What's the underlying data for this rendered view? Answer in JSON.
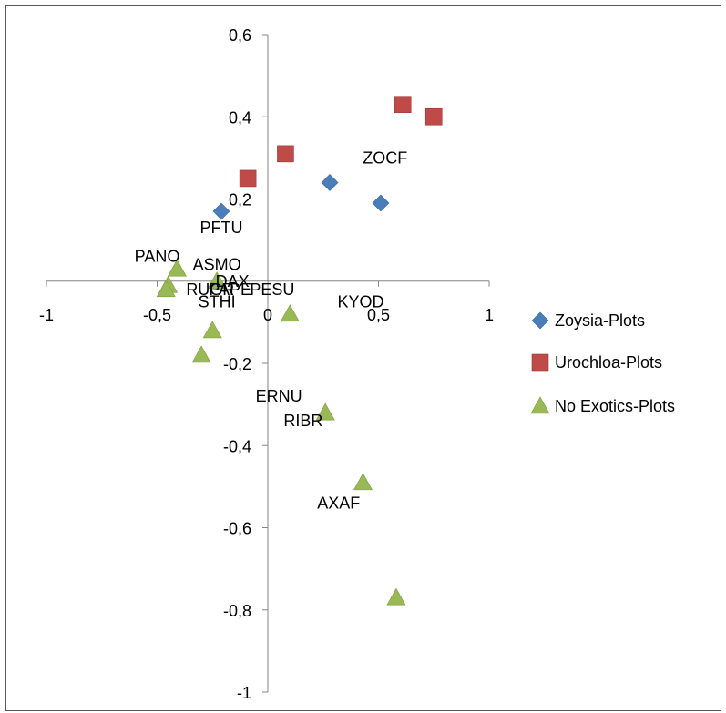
{
  "chart_data": {
    "type": "scatter",
    "title": "",
    "xlabel": "",
    "ylabel": "",
    "xlim": [
      -1,
      1
    ],
    "ylim": [
      -1,
      0.6
    ],
    "x_ticks": [
      "-1",
      "-0,5",
      "0",
      "0,5",
      "1"
    ],
    "x_tick_values": [
      -1,
      -0.5,
      0,
      0.5,
      1
    ],
    "y_ticks": [
      "0,6",
      "0,4",
      "0,2",
      "-0,2",
      "-0,4",
      "-0,6",
      "-0,8",
      "-1"
    ],
    "y_tick_values": [
      0.6,
      0.4,
      0.2,
      -0.2,
      -0.4,
      -0.6,
      -0.8,
      -1
    ],
    "legend_position": "right",
    "series": [
      {
        "name": "Zoysia-Plots",
        "marker": "diamond",
        "color": "#4a7ebb",
        "points": [
          [
            -0.21,
            0.17
          ],
          [
            0.28,
            0.24
          ],
          [
            0.51,
            0.19
          ]
        ]
      },
      {
        "name": "Urochloa-Plots",
        "marker": "square",
        "color": "#be4b48",
        "points": [
          [
            -0.09,
            0.25
          ],
          [
            0.08,
            0.31
          ],
          [
            0.61,
            0.43
          ],
          [
            0.75,
            0.4
          ]
        ]
      },
      {
        "name": "No Exotics-Plots",
        "marker": "triangle",
        "color": "#98b954",
        "points": [
          [
            -0.41,
            0.03
          ],
          [
            -0.45,
            -0.01
          ],
          [
            -0.46,
            -0.02
          ],
          [
            -0.23,
            0.0
          ],
          [
            0.1,
            -0.08
          ],
          [
            -0.25,
            -0.12
          ],
          [
            -0.3,
            -0.18
          ],
          [
            0.26,
            -0.32
          ],
          [
            0.43,
            -0.49
          ],
          [
            0.58,
            -0.77
          ]
        ]
      }
    ],
    "annotations": [
      {
        "text": "ZOCF",
        "x": 0.53,
        "y": 0.3
      },
      {
        "text": "PFTU",
        "x": -0.21,
        "y": 0.13
      },
      {
        "text": "PANO",
        "x": -0.5,
        "y": 0.06
      },
      {
        "text": "ASMO",
        "x": -0.23,
        "y": 0.04
      },
      {
        "text": "DAX",
        "x": -0.16,
        "y": 0.0
      },
      {
        "text": "RUGR",
        "x": -0.26,
        "y": -0.02
      },
      {
        "text": "PAPE",
        "x": -0.17,
        "y": -0.02
      },
      {
        "text": "PESU",
        "x": 0.02,
        "y": -0.02
      },
      {
        "text": "STHI",
        "x": -0.23,
        "y": -0.05
      },
      {
        "text": "KYOD",
        "x": 0.42,
        "y": -0.05
      },
      {
        "text": "ERNU",
        "x": 0.05,
        "y": -0.28
      },
      {
        "text": "RIBR",
        "x": 0.16,
        "y": -0.34
      },
      {
        "text": "AXAF",
        "x": 0.32,
        "y": -0.54
      }
    ]
  }
}
